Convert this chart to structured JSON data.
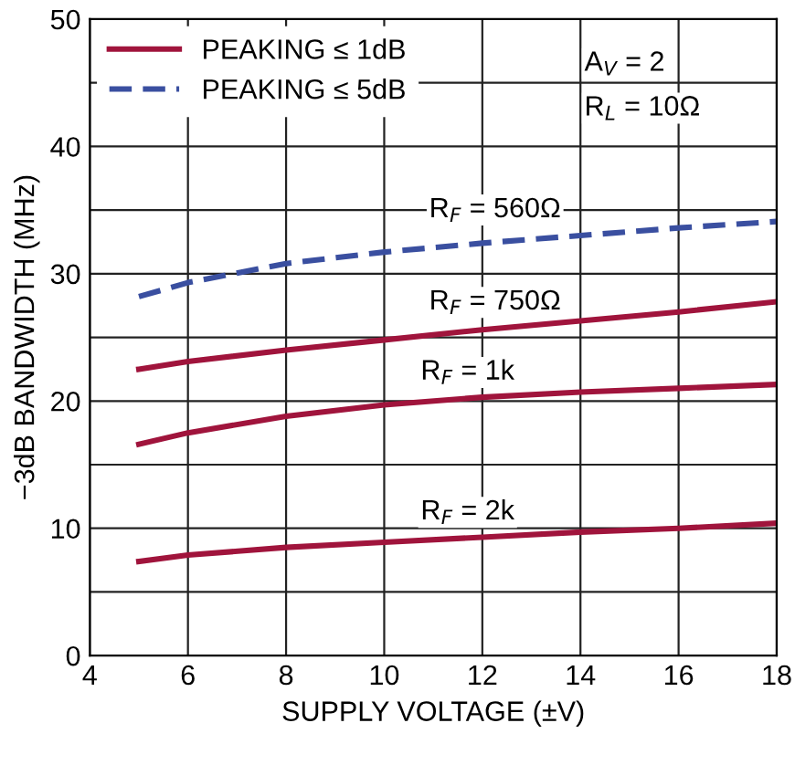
{
  "chart_data": {
    "type": "line",
    "xlabel": "SUPPLY VOLTAGE (±V)",
    "ylabel": "−3dB BANDWIDTH (MHz)",
    "xlim": [
      4,
      18
    ],
    "xticks": [
      4,
      6,
      8,
      10,
      12,
      14,
      16,
      18
    ],
    "ylim": [
      0,
      50
    ],
    "yticks": [
      0,
      {
        "value": 5,
        "label": null
      },
      10,
      {
        "value": 15,
        "label": null
      },
      20,
      {
        "value": 25,
        "label": null
      },
      30,
      {
        "value": 35,
        "label": null
      },
      40,
      {
        "value": 45,
        "label": null
      },
      50
    ],
    "grid": true,
    "legend": "top left",
    "marker": "none",
    "series": [
      {
        "name": "PEAKING ≤ 1dB",
        "color": "#a0143c",
        "line_style": "solid",
        "x": [
          5,
          6,
          8,
          10,
          12,
          14,
          16,
          18
        ],
        "values": [
          22.5,
          23.1,
          24.0,
          24.8,
          25.6,
          26.3,
          27.0,
          27.8
        ]
      },
      {
        "name": "PEAKING ≤ 5dB",
        "color": "#3a4fa0",
        "line_style": "dashed",
        "x": [
          5,
          6,
          8,
          10,
          12,
          14,
          16,
          18
        ],
        "values": [
          28.2,
          29.3,
          30.8,
          31.7,
          32.4,
          33.0,
          33.6,
          34.1
        ]
      },
      {
        "color": "#a0143c",
        "line_style": "solid",
        "x": [
          5,
          6,
          8,
          10,
          12,
          14,
          16,
          18
        ],
        "values": [
          16.6,
          17.5,
          18.8,
          19.7,
          20.3,
          20.7,
          21.0,
          21.3
        ]
      },
      {
        "color": "#a0143c",
        "line_style": "solid",
        "x": [
          5,
          6,
          8,
          10,
          12,
          14,
          16,
          18
        ],
        "values": [
          7.4,
          7.9,
          8.5,
          8.9,
          9.3,
          9.7,
          10.0,
          10.4
        ]
      }
    ],
    "annotations": [
      "R$_{F}$ = 560Ω",
      "R$_{F}$ = 750Ω",
      "R$_{F}$ = 1k",
      "R$_{F}$ = 2k",
      "A$_{V}$ = 2",
      "R$_{L}$ = 10Ω"
    ]
  }
}
